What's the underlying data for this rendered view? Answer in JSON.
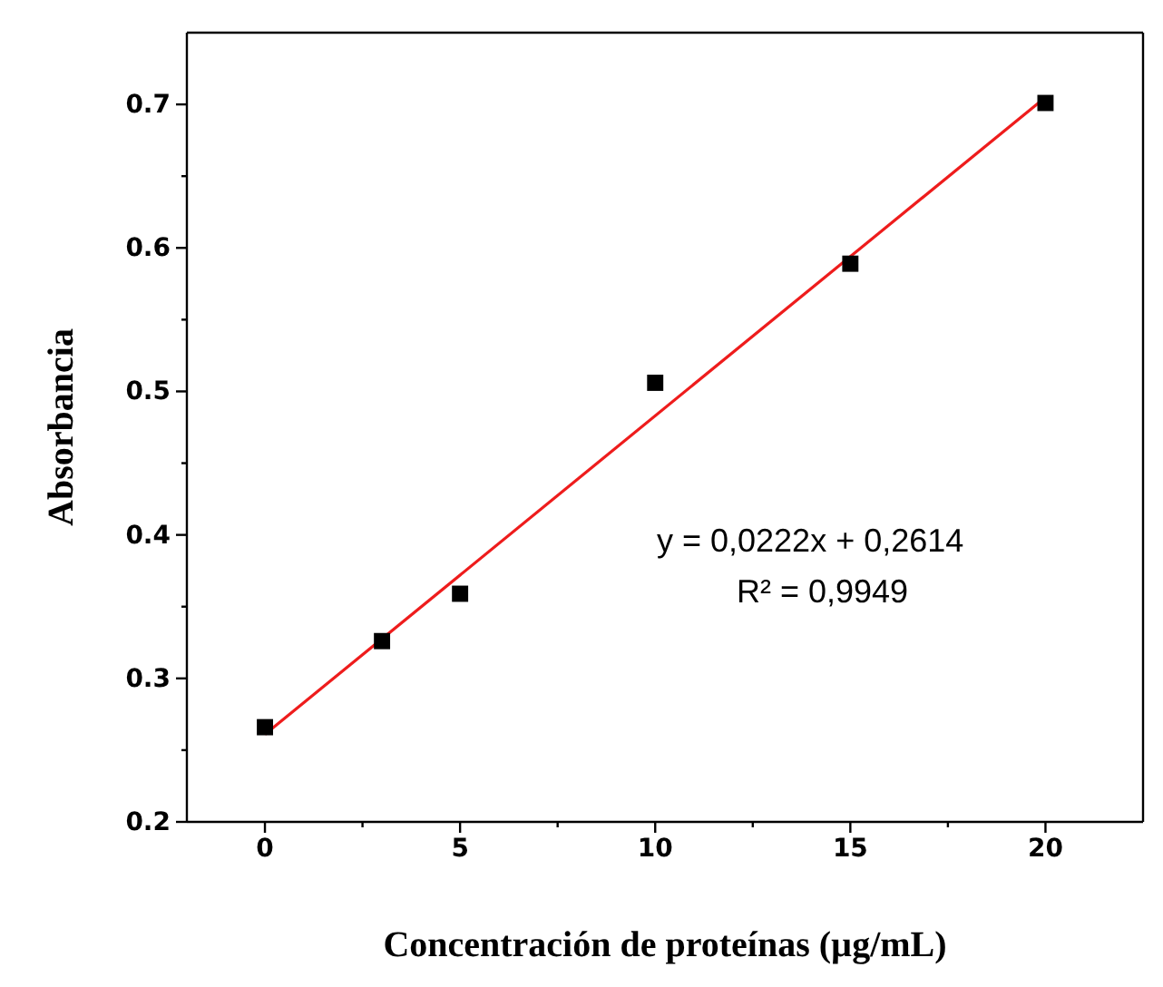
{
  "chart_data": {
    "type": "scatter",
    "xlabel": "Concentración de proteínas (µg/mL)",
    "ylabel": "Absorbancia",
    "xlim": [
      -2,
      22.5
    ],
    "ylim": [
      0.2,
      0.75
    ],
    "xticks": [
      0,
      {
        "value": 2.5,
        "label": null
      },
      5,
      {
        "value": 7.5,
        "label": null
      },
      10,
      {
        "value": 12.5,
        "label": null
      },
      15,
      {
        "value": 17.5,
        "label": null
      },
      20
    ],
    "yticks": [
      0.2,
      {
        "value": 0.25,
        "label": null
      },
      0.3,
      {
        "value": 0.35,
        "label": null
      },
      0.4,
      {
        "value": 0.45,
        "label": null
      },
      0.5,
      {
        "value": 0.55,
        "label": null
      },
      0.6,
      {
        "value": 0.65,
        "label": null
      },
      0.7
    ],
    "grid": false,
    "series": [
      {
        "marker": "square",
        "color": "#000000",
        "x": [
          0,
          3,
          5,
          10,
          15,
          20
        ],
        "values": [
          0.266,
          0.326,
          0.359,
          0.506,
          0.589,
          0.701
        ]
      },
      {
        "type": "line",
        "color": "#ee1c1c",
        "x": [
          0,
          20
        ],
        "values": [
          0.261,
          0.705
        ]
      }
    ],
    "annotations": [
      "y = 0,0222x + 0,2614",
      "R² = 0,9949"
    ]
  }
}
